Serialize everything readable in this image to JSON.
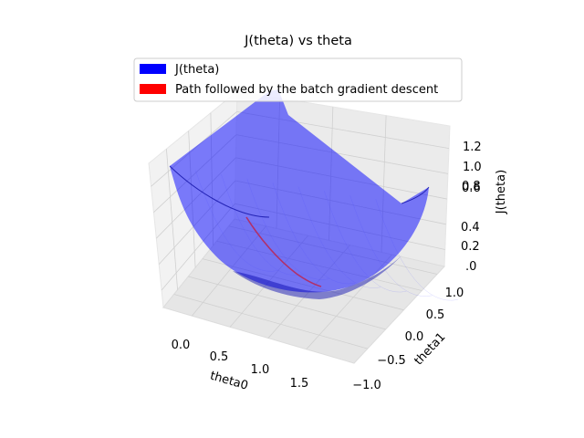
{
  "chart_data": {
    "type": "surface3d",
    "title": "J(theta) vs theta",
    "xlabel": "theta0",
    "ylabel": "theta1",
    "zlabel": "J(theta)",
    "x_ticks": [
      "0.0",
      "0.5",
      "1.0",
      "1.5"
    ],
    "y_ticks": [
      "−1.0",
      "−0.5",
      "0.0",
      "0.5",
      "1.0"
    ],
    "z_ticks": [
      ".0",
      "0.2",
      "0.4",
      "0.6",
      "0.8",
      "1.0",
      "1.2"
    ],
    "xlim": [
      -0.25,
      1.75
    ],
    "ylim": [
      -1.25,
      1.25
    ],
    "zlim": [
      0,
      1.3
    ],
    "grid": true,
    "legend_position": "top-center",
    "legend": [
      {
        "label": "J(theta)",
        "color": "#0000ff"
      },
      {
        "label": "Path followed by the batch gradient descent",
        "color": "#ff0000"
      }
    ],
    "surface": {
      "name": "J(theta)",
      "color": "#0000ff",
      "opacity": 0.5
    },
    "path": {
      "name": "Path followed by the batch gradient descent",
      "color": "#ff0000",
      "x": [
        0.0,
        0.15,
        0.3,
        0.45,
        0.6,
        0.72,
        0.8
      ],
      "y": [
        0.0,
        -0.04,
        -0.08,
        -0.12,
        -0.15,
        -0.18,
        -0.2
      ],
      "z": [
        0.62,
        0.42,
        0.27,
        0.16,
        0.09,
        0.05,
        0.04
      ]
    }
  }
}
